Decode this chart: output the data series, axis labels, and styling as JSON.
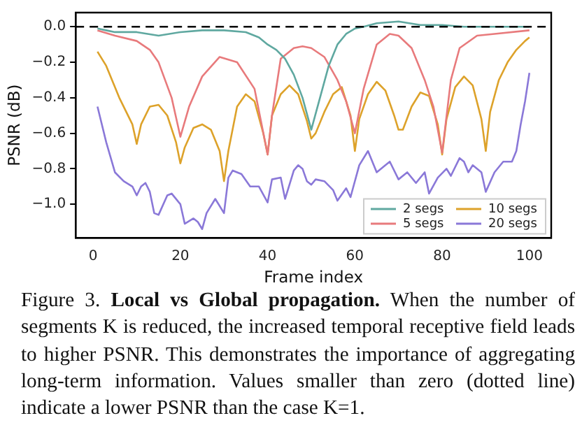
{
  "chart_data": {
    "type": "line",
    "xlabel": "Frame index",
    "ylabel": "PSNR (dB)",
    "xlim": [
      -4,
      105
    ],
    "xticks": [
      0,
      20,
      40,
      60,
      80,
      100
    ],
    "ylim": [
      -1.19,
      0.08
    ],
    "yticks": [
      {
        "value": 0,
        "label": "0.0"
      },
      {
        "value": -0.2,
        "label": "−0.2"
      },
      {
        "value": -0.4,
        "label": "−0.4"
      },
      {
        "value": -0.6,
        "label": "−0.6"
      },
      {
        "value": -0.8,
        "label": "−0.8"
      },
      {
        "value": -1.0,
        "label": "−1.0"
      }
    ],
    "ref_lines": [
      {
        "axis": "y",
        "value": 0,
        "color": "#000000",
        "line_style": "dashed"
      }
    ],
    "legend": "bottom right",
    "grid": false,
    "marker": "none",
    "line_style": "solid",
    "series": [
      {
        "name": "2 segs",
        "color": "#5fa8a0",
        "x": [
          1,
          3,
          5,
          10,
          15,
          20,
          25,
          30,
          35,
          38,
          40,
          42,
          44,
          46,
          48,
          50,
          52,
          54,
          56,
          58,
          60,
          62,
          65,
          70,
          75,
          80,
          85,
          90,
          95,
          100
        ],
        "values": [
          -0.01,
          -0.02,
          -0.03,
          -0.03,
          -0.05,
          -0.03,
          -0.02,
          -0.02,
          -0.03,
          -0.06,
          -0.1,
          -0.13,
          -0.18,
          -0.27,
          -0.4,
          -0.58,
          -0.4,
          -0.22,
          -0.1,
          -0.04,
          -0.01,
          0.0,
          0.02,
          0.03,
          0.01,
          0.01,
          0.0,
          0.0,
          0.0,
          0.0
        ]
      },
      {
        "name": "5 segs",
        "color": "#e87a7c",
        "x": [
          1,
          5,
          10,
          13,
          15,
          18,
          20,
          22,
          25,
          29,
          33,
          37,
          40,
          41,
          43,
          46,
          48,
          50,
          53,
          56,
          58,
          60,
          62,
          65,
          68,
          70,
          73,
          76,
          78,
          80,
          82,
          84,
          88,
          92,
          100
        ],
        "values": [
          -0.02,
          -0.05,
          -0.08,
          -0.13,
          -0.2,
          -0.4,
          -0.62,
          -0.45,
          -0.28,
          -0.17,
          -0.2,
          -0.35,
          -0.72,
          -0.5,
          -0.18,
          -0.12,
          -0.11,
          -0.12,
          -0.17,
          -0.3,
          -0.42,
          -0.6,
          -0.35,
          -0.1,
          -0.04,
          -0.05,
          -0.12,
          -0.3,
          -0.45,
          -0.71,
          -0.3,
          -0.12,
          -0.05,
          -0.04,
          -0.02
        ]
      },
      {
        "name": "10 segs",
        "color": "#dda22a",
        "x": [
          1,
          3,
          6,
          9,
          10,
          11,
          13,
          15,
          17,
          19,
          20,
          21,
          23,
          25,
          27,
          29,
          30,
          31,
          33,
          35,
          37,
          39,
          40,
          41,
          43,
          45,
          47,
          49,
          50,
          51,
          53,
          55,
          57,
          59,
          60,
          61,
          63,
          65,
          67,
          69,
          70,
          71,
          73,
          75,
          77,
          79,
          80,
          81,
          83,
          85,
          87,
          89,
          90,
          91,
          93,
          95,
          97,
          99,
          100
        ],
        "values": [
          -0.14,
          -0.22,
          -0.4,
          -0.55,
          -0.66,
          -0.55,
          -0.45,
          -0.44,
          -0.5,
          -0.65,
          -0.77,
          -0.68,
          -0.57,
          -0.55,
          -0.58,
          -0.7,
          -0.87,
          -0.7,
          -0.45,
          -0.38,
          -0.42,
          -0.6,
          -0.72,
          -0.5,
          -0.38,
          -0.33,
          -0.38,
          -0.53,
          -0.63,
          -0.6,
          -0.48,
          -0.38,
          -0.34,
          -0.5,
          -0.7,
          -0.52,
          -0.38,
          -0.31,
          -0.36,
          -0.5,
          -0.58,
          -0.58,
          -0.45,
          -0.37,
          -0.39,
          -0.55,
          -0.72,
          -0.52,
          -0.34,
          -0.28,
          -0.33,
          -0.52,
          -0.7,
          -0.48,
          -0.3,
          -0.2,
          -0.13,
          -0.08,
          -0.06
        ]
      },
      {
        "name": "20 segs",
        "color": "#8a78d8",
        "x": [
          1,
          3,
          5,
          7,
          9,
          10,
          11,
          12,
          13,
          14,
          15,
          17,
          18,
          20,
          21,
          23,
          24,
          25,
          26,
          28,
          30,
          31,
          32,
          34,
          36,
          38,
          40,
          41,
          43,
          44,
          46,
          47,
          48,
          49,
          50,
          51,
          53,
          55,
          56,
          58,
          59,
          61,
          63,
          65,
          67,
          68,
          70,
          72,
          74,
          76,
          77,
          79,
          81,
          82,
          84,
          85,
          86,
          87,
          89,
          90,
          92,
          94,
          96,
          97,
          98,
          99,
          100
        ],
        "values": [
          -0.45,
          -0.65,
          -0.82,
          -0.87,
          -0.9,
          -0.95,
          -0.9,
          -0.88,
          -0.93,
          -1.05,
          -1.06,
          -0.95,
          -0.94,
          -1.0,
          -1.11,
          -1.08,
          -1.1,
          -1.14,
          -1.05,
          -0.97,
          -1.05,
          -0.85,
          -0.81,
          -0.83,
          -0.9,
          -0.9,
          -0.99,
          -0.86,
          -0.85,
          -0.97,
          -0.81,
          -0.78,
          -0.8,
          -0.87,
          -0.89,
          -0.86,
          -0.87,
          -0.92,
          -0.98,
          -0.91,
          -0.96,
          -0.78,
          -0.7,
          -0.82,
          -0.78,
          -0.76,
          -0.86,
          -0.82,
          -0.88,
          -0.82,
          -0.94,
          -0.85,
          -0.8,
          -0.84,
          -0.74,
          -0.76,
          -0.82,
          -0.78,
          -0.82,
          -0.93,
          -0.82,
          -0.76,
          -0.76,
          -0.7,
          -0.55,
          -0.42,
          -0.26
        ]
      }
    ],
    "annotations": [
      "Figure 3.",
      "Local vs Global propagation.",
      "When the number of segments K is reduced, the increased temporal receptive field leads to higher PSNR. This demonstrates the importance of aggregating long-term information. Values smaller than zero (dotted line) indicate a lower PSNR than the case K=1."
    ]
  }
}
